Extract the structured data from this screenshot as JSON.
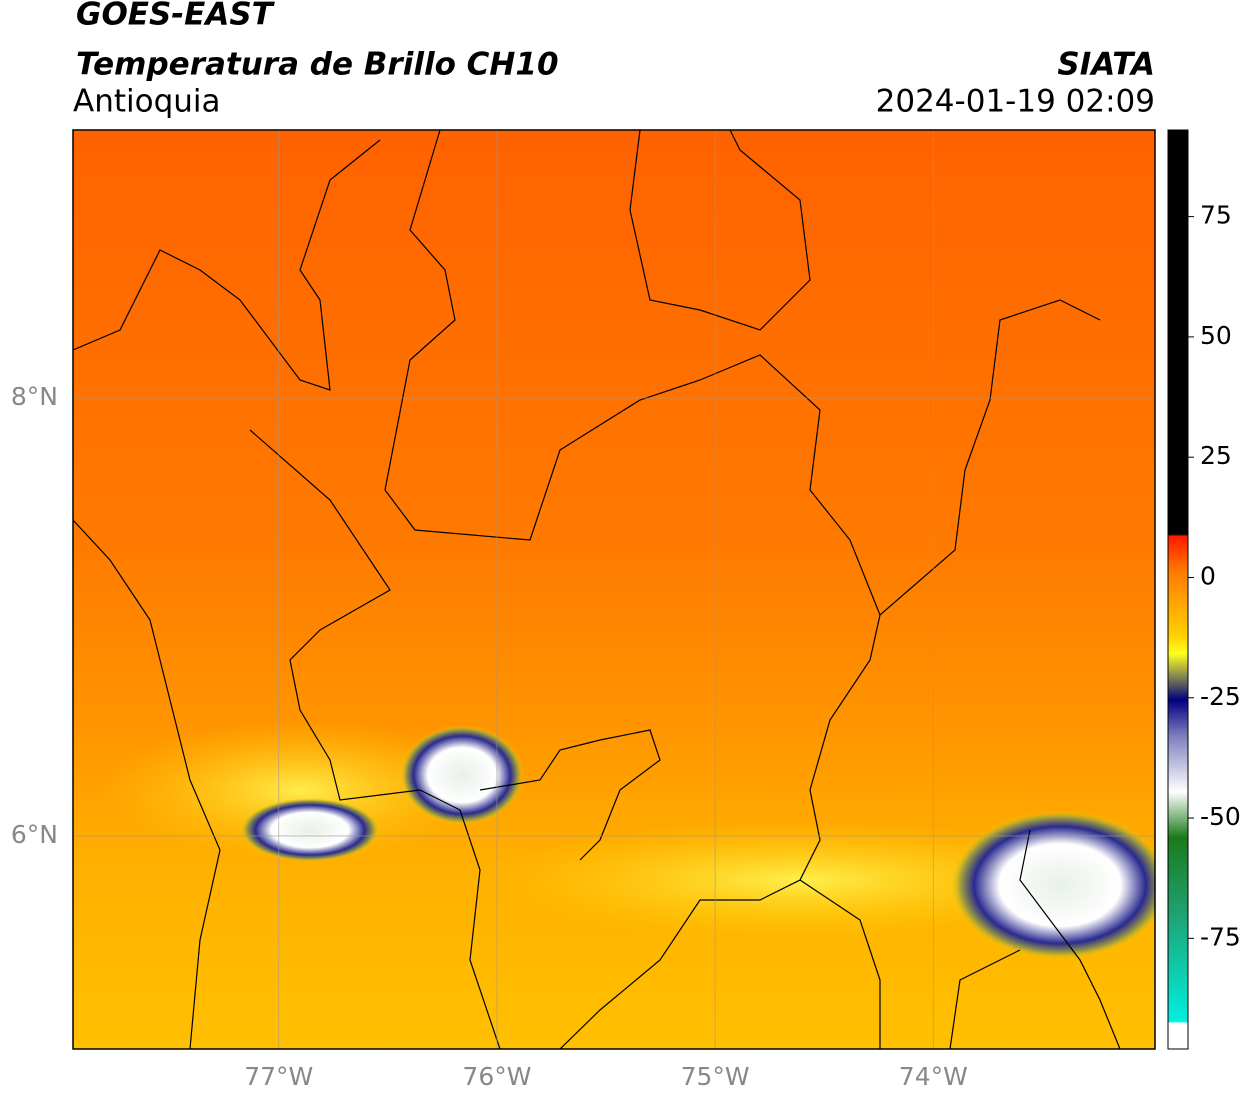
{
  "header": {
    "title": "GOES-EAST",
    "subtitle": "Temperatura de Brillo CH10",
    "region": "Antioquia",
    "source": "SIATA",
    "datetime": "2024-01-19 02:09"
  },
  "map": {
    "xlim": [
      -77.943,
      -72.984
    ],
    "ylim": [
      5.027,
      9.224
    ],
    "xticks": [
      {
        "value": -77,
        "label": "77°W"
      },
      {
        "value": -76,
        "label": "76°W"
      },
      {
        "value": -75,
        "label": "75°W"
      },
      {
        "value": -74,
        "label": "74°W"
      }
    ],
    "yticks": [
      {
        "value": 8,
        "label": "8°N"
      },
      {
        "value": 6,
        "label": "6°N"
      }
    ],
    "grid": true
  },
  "colorbar": {
    "lim": [
      -98,
      93
    ],
    "ticks": [
      75,
      50,
      25,
      0,
      -25,
      -50,
      -75
    ]
  }
}
